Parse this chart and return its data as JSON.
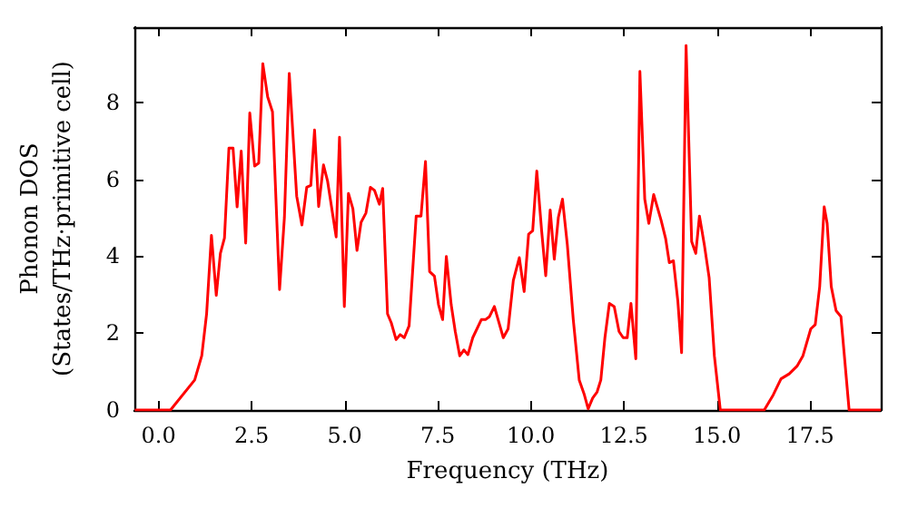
{
  "chart_data": {
    "type": "line",
    "xlabel": "Frequency (THz)",
    "ylabel": "Phonon DOS\n(States/THz·primitive cell)",
    "x": [
      -0.64,
      0.32,
      0.97,
      1.16,
      1.29,
      1.42,
      1.55,
      1.66,
      1.77,
      1.89,
      2.0,
      2.11,
      2.22,
      2.34,
      2.45,
      2.58,
      2.69,
      2.8,
      2.93,
      3.06,
      3.25,
      3.38,
      3.51,
      3.71,
      3.85,
      3.98,
      4.09,
      4.19,
      4.3,
      4.43,
      4.54,
      4.77,
      4.86,
      4.99,
      5.1,
      5.22,
      5.33,
      5.44,
      5.57,
      5.69,
      5.8,
      5.93,
      6.02,
      6.15,
      6.25,
      6.38,
      6.49,
      6.6,
      6.73,
      6.92,
      7.05,
      7.17,
      7.28,
      7.41,
      7.52,
      7.63,
      7.73,
      7.86,
      7.97,
      8.09,
      8.2,
      8.31,
      8.44,
      8.67,
      8.78,
      8.89,
      9.02,
      9.26,
      9.39,
      9.53,
      9.69,
      9.82,
      9.94,
      10.05,
      10.16,
      10.29,
      10.4,
      10.52,
      10.63,
      10.74,
      10.85,
      10.98,
      11.14,
      11.3,
      11.43,
      11.54,
      11.66,
      11.78,
      11.88,
      11.99,
      12.11,
      12.24,
      12.37,
      12.48,
      12.59,
      12.69,
      12.82,
      12.93,
      13.06,
      13.17,
      13.3,
      13.5,
      13.62,
      13.72,
      13.83,
      13.95,
      14.05,
      14.17,
      14.32,
      14.43,
      14.53,
      14.66,
      14.79,
      14.93,
      15.09,
      16.27,
      16.51,
      16.72,
      16.94,
      17.15,
      17.31,
      17.52,
      17.64,
      17.76,
      17.88,
      17.96,
      18.07,
      18.2,
      18.33,
      18.55,
      19.4
    ],
    "series": [
      {
        "color": "#ff0000",
        "values": [
          0,
          0,
          0.78,
          1.41,
          2.5,
          4.54,
          2.98,
          4.07,
          4.47,
          6.81,
          6.81,
          5.28,
          6.73,
          4.34,
          7.72,
          6.34,
          6.42,
          9.0,
          8.14,
          7.75,
          3.13,
          5.0,
          8.75,
          5.56,
          4.81,
          5.79,
          5.84,
          7.28,
          5.29,
          6.37,
          5.95,
          4.5,
          7.09,
          2.69,
          5.63,
          5.23,
          4.15,
          4.88,
          5.12,
          5.79,
          5.71,
          5.35,
          5.76,
          2.5,
          2.27,
          1.83,
          1.96,
          1.88,
          2.19,
          5.04,
          5.04,
          6.46,
          3.6,
          3.48,
          2.74,
          2.35,
          3.99,
          2.74,
          2.04,
          1.41,
          1.56,
          1.44,
          1.88,
          2.35,
          2.35,
          2.43,
          2.69,
          1.88,
          2.11,
          3.37,
          3.96,
          3.08,
          4.57,
          4.66,
          6.21,
          4.66,
          3.49,
          5.2,
          3.92,
          5.01,
          5.48,
          4.3,
          2.35,
          0.78,
          0.42,
          0.03,
          0.31,
          0.47,
          0.78,
          1.88,
          2.77,
          2.69,
          2.04,
          1.88,
          1.88,
          2.77,
          1.33,
          8.8,
          5.48,
          4.85,
          5.6,
          4.93,
          4.46,
          3.83,
          3.88,
          2.82,
          1.49,
          9.47,
          4.38,
          4.07,
          5.04,
          4.3,
          3.44,
          1.41,
          0,
          0,
          0.39,
          0.81,
          0.94,
          1.14,
          1.41,
          2.11,
          2.22,
          3.21,
          5.28,
          4.85,
          3.21,
          2.58,
          2.43,
          0,
          0
        ]
      }
    ],
    "xlim": [
      -0.65,
      19.4
    ],
    "ylim": [
      0,
      9.95
    ],
    "xticks": [
      {
        "value": 0,
        "label": "0.0"
      },
      2.5,
      {
        "value": 5,
        "label": "5.0"
      },
      7.5,
      {
        "value": 10,
        "label": "10.0"
      },
      12.5,
      {
        "value": 15,
        "label": "15.0"
      },
      17.5
    ],
    "yticks": [
      0,
      2,
      4,
      6,
      8
    ],
    "grid": false,
    "marker": "none",
    "line_style": "solid"
  }
}
